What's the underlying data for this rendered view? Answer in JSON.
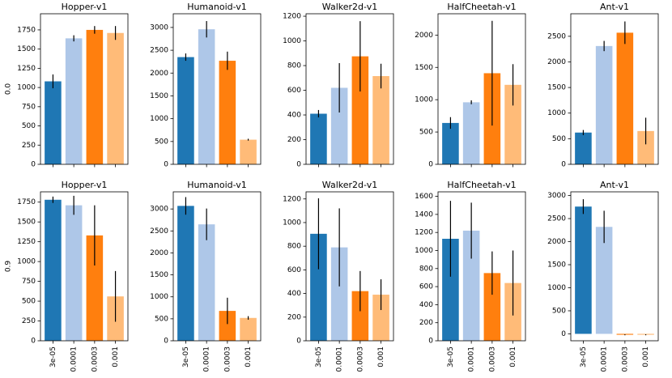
{
  "chart_data": [
    {
      "type": "bar",
      "title": "Hopper-v1",
      "ylabel": "0.0",
      "categories": [
        null,
        null,
        null,
        null
      ],
      "values": [
        1080,
        1640,
        1750,
        1710
      ],
      "errors": [
        90,
        40,
        50,
        90
      ],
      "colors": [
        "#1f77b4",
        "#aec7e8",
        "#ff7f0e",
        "#ffbb78"
      ],
      "ylim": [
        0,
        1960
      ],
      "yticks": [
        0,
        250,
        500,
        750,
        1000,
        1250,
        1500,
        1750
      ]
    },
    {
      "type": "bar",
      "title": "Humanoid-v1",
      "categories": [
        null,
        null,
        null,
        null
      ],
      "values": [
        2350,
        2960,
        2270,
        540
      ],
      "errors": [
        80,
        180,
        200,
        20
      ],
      "colors": [
        "#1f77b4",
        "#aec7e8",
        "#ff7f0e",
        "#ffbb78"
      ],
      "ylim": [
        0,
        3300
      ],
      "yticks": [
        0,
        500,
        1000,
        1500,
        2000,
        2500,
        3000
      ]
    },
    {
      "type": "bar",
      "title": "Walker2d-v1",
      "categories": [
        null,
        null,
        null,
        null
      ],
      "values": [
        410,
        620,
        875,
        715
      ],
      "errors": [
        30,
        200,
        285,
        100
      ],
      "colors": [
        "#1f77b4",
        "#aec7e8",
        "#ff7f0e",
        "#ffbb78"
      ],
      "ylim": [
        0,
        1220
      ],
      "yticks": [
        0,
        200,
        400,
        600,
        800,
        1000,
        1200
      ]
    },
    {
      "type": "bar",
      "title": "HalfCheetah-v1",
      "categories": [
        null,
        null,
        null,
        null
      ],
      "values": [
        640,
        960,
        1410,
        1230
      ],
      "errors": [
        90,
        30,
        810,
        320
      ],
      "colors": [
        "#1f77b4",
        "#aec7e8",
        "#ff7f0e",
        "#ffbb78"
      ],
      "ylim": [
        0,
        2330
      ],
      "yticks": [
        0,
        500,
        1000,
        1500,
        2000
      ]
    },
    {
      "type": "bar",
      "title": "Ant-v1",
      "categories": [
        null,
        null,
        null,
        null
      ],
      "values": [
        620,
        2310,
        2570,
        650
      ],
      "errors": [
        50,
        100,
        220,
        260
      ],
      "colors": [
        "#1f77b4",
        "#aec7e8",
        "#ff7f0e",
        "#ffbb78"
      ],
      "ylim": [
        0,
        2940
      ],
      "yticks": [
        0,
        500,
        1000,
        1500,
        2000,
        2500
      ]
    },
    {
      "type": "bar",
      "title": "Hopper-v1",
      "ylabel": "0.9",
      "categories": [
        "3e-05",
        "0.0001",
        "0.0003",
        "0.001"
      ],
      "values": [
        1780,
        1710,
        1330,
        560
      ],
      "errors": [
        40,
        120,
        380,
        320
      ],
      "colors": [
        "#1f77b4",
        "#aec7e8",
        "#ff7f0e",
        "#ffbb78"
      ],
      "ylim": [
        0,
        1880
      ],
      "yticks": [
        0,
        250,
        500,
        750,
        1000,
        1250,
        1500,
        1750
      ]
    },
    {
      "type": "bar",
      "title": "Humanoid-v1",
      "categories": [
        "3e-05",
        "0.0001",
        "0.0003",
        "0.001"
      ],
      "values": [
        3070,
        2650,
        680,
        520
      ],
      "errors": [
        200,
        360,
        300,
        40
      ],
      "colors": [
        "#1f77b4",
        "#aec7e8",
        "#ff7f0e",
        "#ffbb78"
      ],
      "ylim": [
        0,
        3390
      ],
      "yticks": [
        0,
        500,
        1000,
        1500,
        2000,
        2500,
        3000
      ]
    },
    {
      "type": "bar",
      "title": "Walker2d-v1",
      "categories": [
        "3e-05",
        "0.0001",
        "0.0003",
        "0.001"
      ],
      "values": [
        905,
        790,
        420,
        390
      ],
      "errors": [
        300,
        330,
        170,
        130
      ],
      "colors": [
        "#1f77b4",
        "#aec7e8",
        "#ff7f0e",
        "#ffbb78"
      ],
      "ylim": [
        0,
        1260
      ],
      "yticks": [
        0,
        200,
        400,
        600,
        800,
        1000,
        1200
      ]
    },
    {
      "type": "bar",
      "title": "HalfCheetah-v1",
      "categories": [
        "3e-05",
        "0.0001",
        "0.0003",
        "0.001"
      ],
      "values": [
        1130,
        1220,
        750,
        640
      ],
      "errors": [
        420,
        310,
        240,
        360
      ],
      "colors": [
        "#1f77b4",
        "#aec7e8",
        "#ff7f0e",
        "#ffbb78"
      ],
      "ylim": [
        0,
        1650
      ],
      "yticks": [
        0,
        200,
        400,
        600,
        800,
        1000,
        1200,
        1400,
        1600
      ]
    },
    {
      "type": "bar",
      "title": "Ant-v1",
      "categories": [
        "3e-05",
        "0.0001",
        "0.0003",
        "0.001"
      ],
      "values": [
        2760,
        2320,
        -20,
        -20
      ],
      "errors": [
        160,
        350,
        10,
        10
      ],
      "colors": [
        "#1f77b4",
        "#aec7e8",
        "#ff7f0e",
        "#ffbb78"
      ],
      "ylim": [
        -150,
        3080
      ],
      "yticks": [
        0,
        500,
        1000,
        1500,
        2000,
        2500,
        3000
      ]
    }
  ]
}
